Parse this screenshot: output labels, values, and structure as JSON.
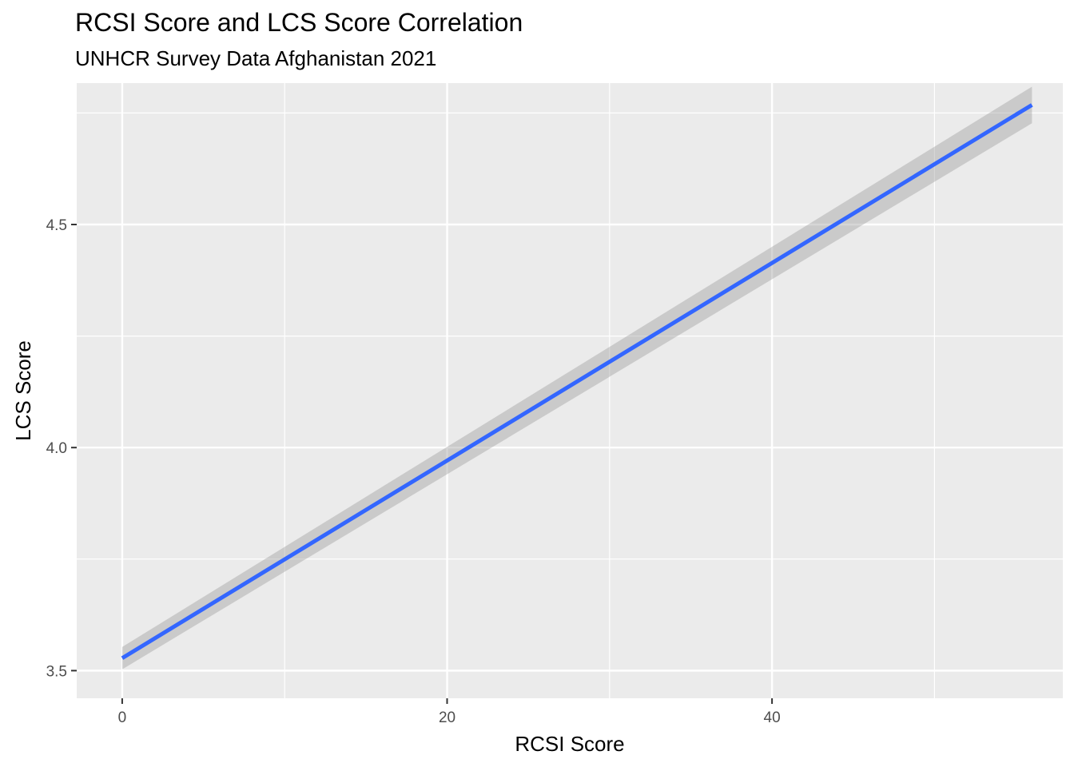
{
  "chart_data": {
    "type": "line",
    "title": "RCSI Score and LCS Score Correlation",
    "subtitle": "UNHCR Survey Data Afghanistan 2021",
    "xlabel": "RCSI Score",
    "ylabel": "LCS Score",
    "xlim": [
      -2.8,
      57.9
    ],
    "ylim": [
      3.438,
      4.817
    ],
    "x_ticks": [
      0,
      20,
      40
    ],
    "x_minor_ticks": [
      10,
      30,
      50
    ],
    "y_ticks": [
      3.5,
      4.0,
      4.5
    ],
    "y_tick_labels": [
      "3.5",
      "4.0",
      "4.5"
    ],
    "y_minor_ticks": [
      3.75,
      4.25,
      4.75
    ],
    "grid": true,
    "series": [
      {
        "type": "smooth-lm",
        "x": [
          0,
          56
        ],
        "y": [
          3.528,
          4.768
        ],
        "ci_lower": [
          3.503,
          4.727
        ],
        "ci_upper": [
          3.553,
          4.809
        ],
        "color": "#3366ff"
      }
    ],
    "colors": {
      "panel": "#ebebeb",
      "gridline": "#ffffff",
      "ribbon": "#999999",
      "line": "#3366ff"
    }
  }
}
